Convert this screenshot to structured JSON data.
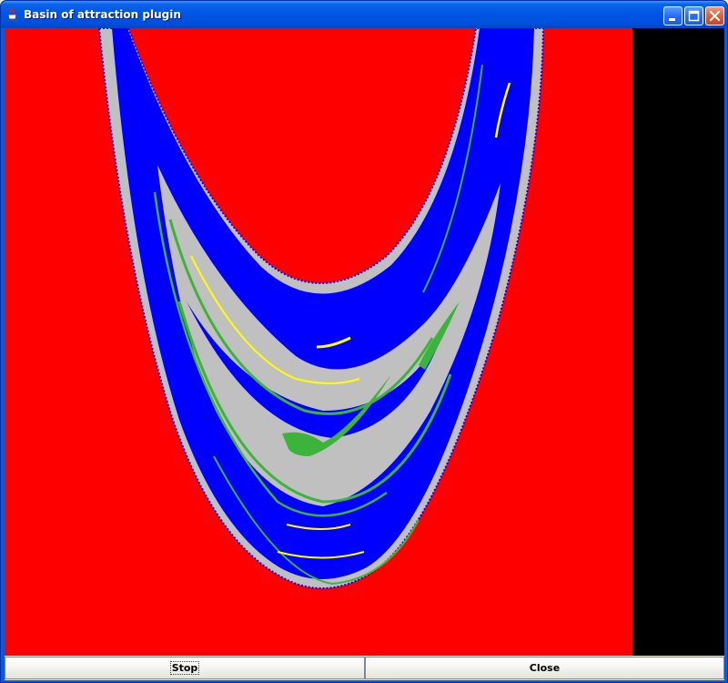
{
  "window": {
    "title": "Basin of attraction plugin",
    "icon": "java-coffee-icon"
  },
  "titlebar_buttons": {
    "minimize_icon": "minimize-icon",
    "maximize_icon": "maximize-icon",
    "close_icon": "close-icon"
  },
  "plot": {
    "colors": {
      "background": "#FF0000",
      "blue_basin": "#0000FF",
      "gray_basin": "#C0C0C0",
      "green_basin": "#3CB43C",
      "yellow_basin": "#FFFF00",
      "side_panel": "#000000"
    }
  },
  "buttons": {
    "stop_label": "Stop",
    "close_label": "Close"
  }
}
